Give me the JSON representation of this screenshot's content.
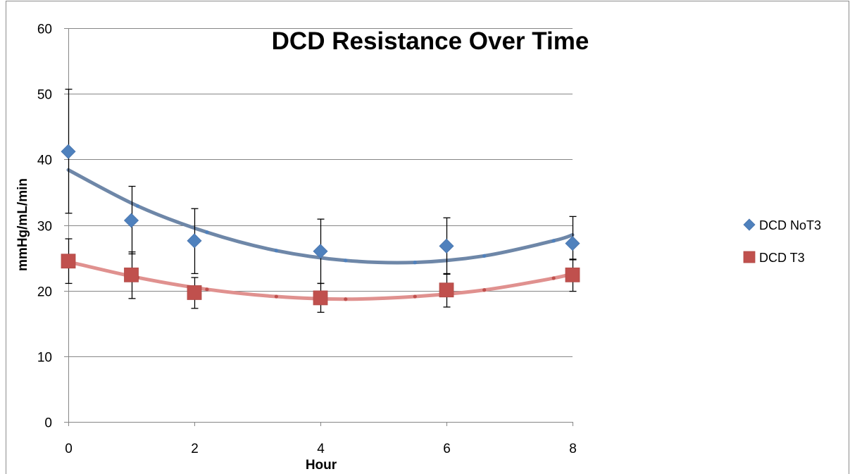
{
  "chart_data": {
    "type": "scatter",
    "title": "DCD Resistance Over Time",
    "xlabel": "Hour",
    "ylabel": "mmHg/mL/min",
    "xlim": [
      0,
      8
    ],
    "ylim": [
      0,
      60
    ],
    "x_ticks": [
      0,
      2,
      4,
      6,
      8
    ],
    "y_ticks": [
      0,
      10,
      20,
      30,
      40,
      50,
      60
    ],
    "grid": "horizontal",
    "legend_position": "right",
    "series": [
      {
        "name": "DCD NoT3",
        "marker": "diamond",
        "color": "#4F81BD",
        "x": [
          0,
          1,
          2,
          4,
          6,
          8
        ],
        "y": [
          41.2,
          30.7,
          27.6,
          26.0,
          26.8,
          27.2
        ],
        "error_upper": [
          50.7,
          35.9,
          32.5,
          30.9,
          31.1,
          31.3
        ],
        "error_lower": [
          31.8,
          25.6,
          22.6,
          21.1,
          22.5,
          24.7
        ],
        "trendline": {
          "type": "polynomial-2",
          "color": "#6E87A8",
          "x": [
            0,
            1.1,
            2.2,
            3.3,
            4.4,
            5.5,
            6.6,
            7.7,
            8
          ],
          "y": [
            38.4,
            32.9,
            28.9,
            26.1,
            24.6,
            24.3,
            25.3,
            27.6,
            28.5
          ]
        }
      },
      {
        "name": "DCD T3",
        "marker": "square",
        "color": "#C0504D",
        "x": [
          0,
          1,
          2,
          4,
          6,
          8
        ],
        "y": [
          24.5,
          22.4,
          19.7,
          18.9,
          20.1,
          22.4
        ],
        "error_upper": [
          27.9,
          25.9,
          22.0,
          21.1,
          22.6,
          24.8
        ],
        "error_lower": [
          21.1,
          18.8,
          17.3,
          16.7,
          17.5,
          19.9
        ],
        "trendline": {
          "type": "polynomial-2",
          "color": "#E0918F",
          "x": [
            0,
            1.1,
            2.2,
            3.3,
            4.4,
            5.5,
            6.6,
            7.7,
            8
          ],
          "y": [
            24.4,
            22.0,
            20.2,
            19.1,
            18.7,
            19.1,
            20.1,
            21.9,
            22.6
          ]
        }
      }
    ]
  }
}
